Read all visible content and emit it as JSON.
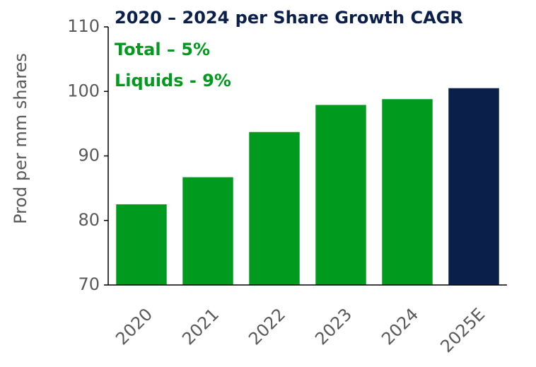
{
  "chart_data": {
    "type": "bar",
    "title": "2020 – 2024 per Share Growth CAGR",
    "annotations": [
      "Total – 5%",
      "Liquids  - 9%"
    ],
    "y_label": "Prod per mm shares",
    "categories": [
      "2020",
      "2021",
      "2022",
      "2023",
      "2024",
      "2025E"
    ],
    "values": [
      82.5,
      86.7,
      93.7,
      97.9,
      98.8,
      100.5
    ],
    "colors": [
      "#009a1e",
      "#009a1e",
      "#009a1e",
      "#009a1e",
      "#009a1e",
      "#0a1f4a"
    ],
    "title_color": "#0a1f4a",
    "annotation_color": "#009a1e",
    "ylim": [
      70,
      110
    ],
    "yticks": [
      70,
      80,
      90,
      100,
      110
    ],
    "grid": false
  }
}
